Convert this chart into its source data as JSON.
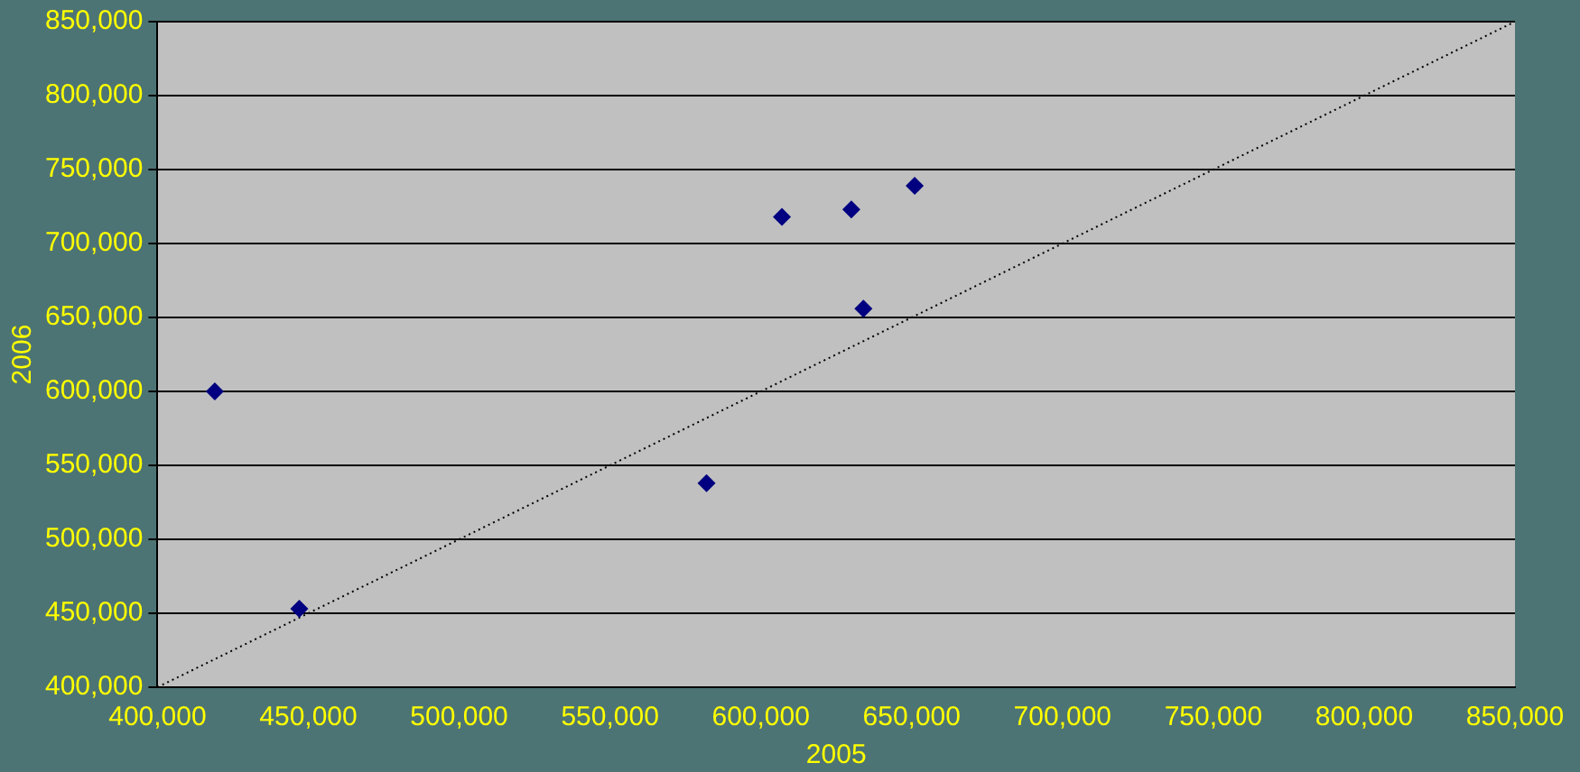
{
  "chart_data": {
    "type": "scatter",
    "xlabel": "2005",
    "ylabel": "2006",
    "xlim": [
      400000,
      850000
    ],
    "xticks": [
      {
        "value": 400000,
        "label": "400,000"
      },
      {
        "value": 450000,
        "label": "450,000"
      },
      {
        "value": 500000,
        "label": "500,000"
      },
      {
        "value": 550000,
        "label": "550,000"
      },
      {
        "value": 600000,
        "label": "600,000"
      },
      {
        "value": 650000,
        "label": "650,000"
      },
      {
        "value": 700000,
        "label": "700,000"
      },
      {
        "value": 750000,
        "label": "750,000"
      },
      {
        "value": 800000,
        "label": "800,000"
      },
      {
        "value": 850000,
        "label": "850,000"
      }
    ],
    "ylim": [
      400000,
      850000
    ],
    "yticks": [
      {
        "value": 400000,
        "label": "400,000"
      },
      {
        "value": 450000,
        "label": "450,000"
      },
      {
        "value": 500000,
        "label": "500,000"
      },
      {
        "value": 550000,
        "label": "550,000"
      },
      {
        "value": 600000,
        "label": "600,000"
      },
      {
        "value": 650000,
        "label": "650,000"
      },
      {
        "value": 700000,
        "label": "700,000"
      },
      {
        "value": 750000,
        "label": "750,000"
      },
      {
        "value": 800000,
        "label": "800,000"
      },
      {
        "value": 850000,
        "label": "850,000"
      }
    ],
    "grid": "y",
    "legend": false,
    "marker": "diamond",
    "series": [
      {
        "color": "#000080",
        "x": [
          419000,
          447000,
          582000,
          607000,
          630000,
          634000,
          651000
        ],
        "values": [
          600000,
          453000,
          538000,
          718000,
          723000,
          656000,
          739000
        ]
      },
      {
        "type": "line",
        "color": "#000000",
        "line_style": "dotted",
        "marker": "none",
        "x": [
          400000,
          850000
        ],
        "values": [
          400000,
          850000
        ]
      }
    ]
  }
}
